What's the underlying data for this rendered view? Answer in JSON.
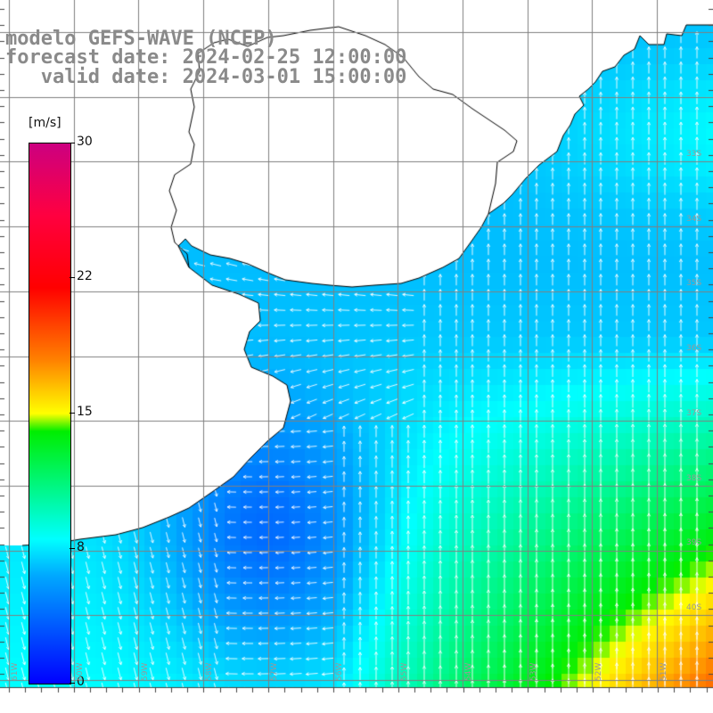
{
  "title": {
    "line1": "modelo GEFS-WAVE (NCEP)",
    "line2": "forecast date: 2024-02-25 12:00:00",
    "line3": "   valid date: 2024-03-01 15:00:00"
  },
  "colorbar": {
    "unit": "[m/s]",
    "ticks": [
      "30",
      "22",
      "15",
      "8",
      "0"
    ],
    "tick_values": [
      30,
      22,
      15,
      8,
      0
    ],
    "stops": [
      {
        "value": 0,
        "color": "#0000ff"
      },
      {
        "value": 6,
        "color": "#00a8ff"
      },
      {
        "value": 8,
        "color": "#00ffff"
      },
      {
        "value": 14,
        "color": "#00ee00"
      },
      {
        "value": 15,
        "color": "#ffff00"
      },
      {
        "value": 18,
        "color": "#ff8000"
      },
      {
        "value": 22,
        "color": "#ff0000"
      },
      {
        "value": 26,
        "color": "#ff0040"
      },
      {
        "value": 30,
        "color": "#cc0080"
      }
    ]
  },
  "map": {
    "lat_labels": [
      "33S",
      "34S",
      "35S",
      "36S",
      "37S",
      "38S",
      "39S",
      "40S"
    ],
    "lon_labels": [
      "61W",
      "60W",
      "59W",
      "58W",
      "57W",
      "56W",
      "55W",
      "54W",
      "53W",
      "52W",
      "51W"
    ],
    "field": "wind speed and direction",
    "colors": {
      "land": "#ffffff",
      "coast": "#000000",
      "grid": "#808080",
      "arrow": "#ffffff"
    }
  }
}
